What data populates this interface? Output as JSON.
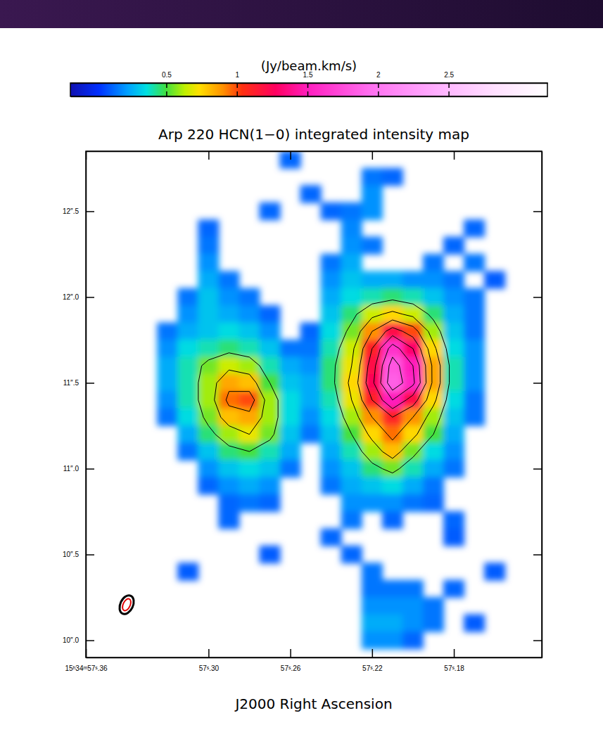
{
  "chart_data": {
    "type": "heatmap",
    "title": "Arp 220 HCN(1−0) integrated intensity map",
    "x_label": "J2000 Right Ascension",
    "xlim": [
      57.36,
      57.137
    ],
    "ylim": [
      9.9,
      12.85
    ],
    "xticks": [
      {
        "value": 57.36,
        "label": "15ʰ34ᵐ57ˢ.36"
      },
      {
        "value": 57.3,
        "label": "57ˢ.30"
      },
      {
        "value": 57.26,
        "label": "57ˢ.26"
      },
      {
        "value": 57.22,
        "label": "57ˢ.22"
      },
      {
        "value": 57.18,
        "label": "57ˢ.18"
      }
    ],
    "yticks": [
      {
        "value": 10.0,
        "label": "10″.0"
      },
      {
        "value": 10.5,
        "label": "10″.5"
      },
      {
        "value": 11.0,
        "label": "11″.0"
      },
      {
        "value": 11.5,
        "label": "11″.5"
      },
      {
        "value": 12.0,
        "label": "12″.0"
      },
      {
        "value": 12.5,
        "label": "12″.5"
      }
    ],
    "colorbar": {
      "label": "(Jy/beam.km/s)",
      "range": [
        -0.18,
        3.2
      ],
      "ticks": [
        0.5,
        1,
        1.5,
        2,
        2.5
      ]
    },
    "contour_levels": [
      0.5,
      0.7,
      0.9,
      1.1,
      1.3,
      1.5,
      1.7
    ],
    "x": [
      57.35,
      57.34,
      57.33,
      57.32,
      57.31,
      57.3,
      57.29,
      57.28,
      57.27,
      57.26,
      57.25,
      57.24,
      57.23,
      57.22,
      57.21,
      57.2,
      57.19,
      57.18,
      57.17,
      57.16,
      57.15
    ],
    "y": [
      12.8,
      12.7,
      12.6,
      12.5,
      12.4,
      12.3,
      12.2,
      12.1,
      12.0,
      11.9,
      11.8,
      11.7,
      11.6,
      11.5,
      11.4,
      11.3,
      11.2,
      11.1,
      11.0,
      10.9,
      10.8,
      10.7,
      10.6,
      10.5,
      10.4,
      10.3,
      10.2,
      10.1,
      10.0
    ],
    "values": [
      [
        null,
        null,
        null,
        null,
        null,
        null,
        null,
        null,
        null,
        0.12,
        null,
        null,
        null,
        null,
        null,
        null,
        null,
        null,
        null,
        null,
        null
      ],
      [
        null,
        null,
        null,
        null,
        null,
        null,
        null,
        null,
        null,
        null,
        null,
        null,
        null,
        0.15,
        0.12,
        null,
        null,
        null,
        null,
        null,
        null
      ],
      [
        null,
        null,
        null,
        null,
        null,
        null,
        null,
        null,
        null,
        null,
        0.12,
        null,
        null,
        0.2,
        null,
        null,
        null,
        null,
        null,
        null,
        null
      ],
      [
        null,
        null,
        null,
        null,
        null,
        null,
        null,
        null,
        0.12,
        null,
        null,
        0.12,
        0.15,
        0.2,
        null,
        null,
        null,
        null,
        null,
        null,
        null
      ],
      [
        null,
        null,
        null,
        null,
        null,
        0.12,
        null,
        null,
        null,
        null,
        null,
        null,
        0.18,
        null,
        null,
        null,
        null,
        null,
        0.12,
        null,
        null
      ],
      [
        null,
        null,
        null,
        null,
        null,
        0.15,
        null,
        null,
        null,
        null,
        null,
        null,
        0.2,
        0.15,
        null,
        null,
        null,
        0.12,
        null,
        null,
        null
      ],
      [
        null,
        null,
        null,
        null,
        null,
        0.2,
        null,
        null,
        null,
        null,
        null,
        0.15,
        0.25,
        null,
        null,
        null,
        0.15,
        null,
        0.15,
        null,
        null
      ],
      [
        null,
        null,
        null,
        null,
        null,
        0.25,
        0.15,
        null,
        null,
        null,
        null,
        0.2,
        0.3,
        0.25,
        0.25,
        0.2,
        0.2,
        0.15,
        null,
        0.1,
        null
      ],
      [
        null,
        null,
        null,
        null,
        0.15,
        0.3,
        0.2,
        0.15,
        null,
        null,
        null,
        0.25,
        0.35,
        0.4,
        0.45,
        0.4,
        0.3,
        0.2,
        0.15,
        null,
        null
      ],
      [
        null,
        null,
        null,
        null,
        0.2,
        0.3,
        0.25,
        0.2,
        0.12,
        null,
        null,
        0.3,
        0.45,
        0.65,
        0.75,
        0.65,
        0.45,
        0.25,
        0.15,
        null,
        null
      ],
      [
        null,
        null,
        null,
        0.15,
        0.25,
        0.3,
        0.35,
        0.3,
        0.2,
        null,
        0.12,
        0.35,
        0.55,
        0.9,
        1.2,
        1.0,
        0.6,
        0.3,
        0.15,
        null,
        null
      ],
      [
        null,
        null,
        null,
        0.2,
        0.35,
        0.4,
        0.45,
        0.4,
        0.3,
        0.15,
        0.15,
        0.4,
        0.65,
        1.1,
        1.6,
        1.3,
        0.75,
        0.35,
        0.2,
        null,
        null
      ],
      [
        null,
        null,
        null,
        0.25,
        0.4,
        0.55,
        0.65,
        0.6,
        0.4,
        0.25,
        0.2,
        0.45,
        0.7,
        1.2,
        1.8,
        1.5,
        0.85,
        0.4,
        0.2,
        null,
        null
      ],
      [
        null,
        null,
        null,
        0.25,
        0.4,
        0.6,
        0.85,
        0.8,
        0.5,
        0.3,
        0.25,
        0.45,
        0.75,
        1.25,
        1.85,
        1.55,
        0.85,
        0.4,
        0.2,
        null,
        null
      ],
      [
        null,
        null,
        null,
        0.2,
        0.4,
        0.6,
        0.95,
        1.0,
        0.6,
        0.35,
        0.25,
        0.4,
        0.7,
        1.1,
        1.5,
        1.2,
        0.75,
        0.35,
        0.15,
        null,
        null
      ],
      [
        null,
        null,
        null,
        0.15,
        0.35,
        0.55,
        0.8,
        0.85,
        0.6,
        0.35,
        0.2,
        0.35,
        0.6,
        0.9,
        1.1,
        0.9,
        0.6,
        0.3,
        0.15,
        null,
        null
      ],
      [
        null,
        null,
        null,
        null,
        0.25,
        0.45,
        0.6,
        0.7,
        0.55,
        0.3,
        0.15,
        0.3,
        0.5,
        0.75,
        0.95,
        0.75,
        0.5,
        0.25,
        null,
        null,
        null
      ],
      [
        null,
        null,
        null,
        null,
        0.15,
        0.3,
        0.45,
        0.5,
        0.4,
        0.25,
        null,
        0.25,
        0.4,
        0.6,
        0.8,
        0.55,
        0.35,
        0.2,
        null,
        null,
        null
      ],
      [
        null,
        null,
        null,
        null,
        null,
        0.2,
        0.3,
        0.35,
        0.3,
        0.15,
        null,
        0.2,
        0.3,
        0.45,
        0.55,
        0.4,
        0.25,
        0.15,
        null,
        null,
        null
      ],
      [
        null,
        null,
        null,
        null,
        null,
        0.12,
        0.2,
        0.25,
        0.2,
        null,
        null,
        0.15,
        0.25,
        0.3,
        0.35,
        0.25,
        0.15,
        null,
        null,
        null,
        null
      ],
      [
        null,
        null,
        null,
        null,
        null,
        null,
        0.12,
        0.15,
        0.12,
        null,
        null,
        null,
        0.2,
        0.2,
        0.2,
        0.15,
        0.12,
        null,
        null,
        null,
        null
      ],
      [
        null,
        null,
        null,
        null,
        null,
        null,
        0.12,
        null,
        null,
        null,
        null,
        null,
        0.15,
        null,
        0.12,
        null,
        null,
        0.12,
        null,
        null,
        null
      ],
      [
        null,
        null,
        null,
        null,
        null,
        null,
        null,
        null,
        null,
        null,
        null,
        0.12,
        null,
        null,
        null,
        null,
        null,
        0.1,
        null,
        null,
        null
      ],
      [
        null,
        null,
        null,
        null,
        null,
        null,
        null,
        null,
        0.1,
        null,
        null,
        null,
        0.12,
        null,
        null,
        null,
        null,
        null,
        null,
        null,
        null
      ],
      [
        null,
        null,
        null,
        null,
        0.1,
        null,
        null,
        null,
        null,
        null,
        null,
        null,
        null,
        0.15,
        null,
        null,
        null,
        null,
        null,
        0.1,
        null
      ],
      [
        null,
        null,
        null,
        null,
        null,
        null,
        null,
        null,
        null,
        null,
        null,
        null,
        null,
        0.15,
        0.15,
        0.15,
        null,
        0.12,
        null,
        null,
        null
      ],
      [
        null,
        null,
        null,
        null,
        null,
        null,
        null,
        null,
        null,
        null,
        null,
        null,
        null,
        0.2,
        0.2,
        0.2,
        0.15,
        null,
        null,
        null,
        null
      ],
      [
        null,
        null,
        null,
        null,
        null,
        null,
        null,
        null,
        null,
        null,
        null,
        null,
        null,
        0.25,
        0.25,
        0.2,
        0.15,
        null,
        0.1,
        null,
        null
      ],
      [
        null,
        null,
        null,
        null,
        null,
        null,
        null,
        null,
        null,
        null,
        null,
        null,
        null,
        0.2,
        0.2,
        0.12,
        null,
        null,
        null,
        null,
        null
      ]
    ]
  }
}
